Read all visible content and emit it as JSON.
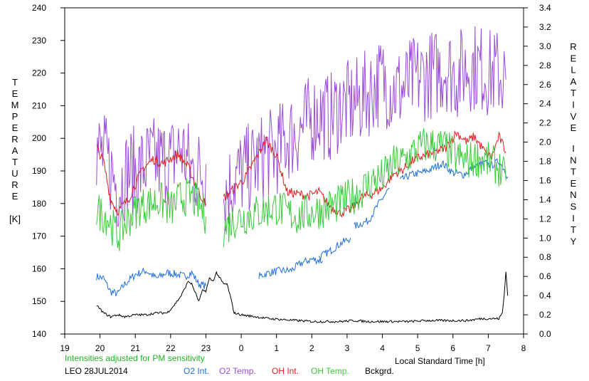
{
  "chart_data": {
    "type": "line",
    "title": "",
    "xlabel": "Local Standard Time [h]",
    "ylabel_left": "TEMPERATURE [K]",
    "ylabel_left_letters": [
      "T",
      "E",
      "M",
      "P",
      "E",
      "R",
      "A",
      "T",
      "U",
      "R",
      "E"
    ],
    "ylabel_left_unit": "[K]",
    "ylabel_right": "RELATIVE INTENSITY",
    "ylabel_right_word1": [
      "R",
      "E",
      "L",
      "A",
      "T",
      "I",
      "V",
      "E"
    ],
    "ylabel_right_word2": [
      "I",
      "N",
      "T",
      "E",
      "N",
      "S",
      "I",
      "T",
      "Y"
    ],
    "x_range": [
      19,
      32
    ],
    "x_ticks": [
      19,
      20,
      21,
      22,
      23,
      24,
      25,
      26,
      27,
      28,
      29,
      30,
      31,
      32
    ],
    "x_tick_labels": [
      "19",
      "20",
      "21",
      "22",
      "23",
      "0",
      "1",
      "2",
      "3",
      "4",
      "5",
      "6",
      "7",
      "8"
    ],
    "ylim_left": [
      140,
      240
    ],
    "y_left_ticks": [
      140,
      150,
      160,
      170,
      180,
      190,
      200,
      210,
      220,
      230,
      240
    ],
    "y_left_tick_labels": [
      "140",
      "150",
      "160",
      "170",
      "180",
      "190",
      "200",
      "210",
      "220",
      "230",
      "240"
    ],
    "ylim_right": [
      0.0,
      3.4
    ],
    "y_right_ticks": [
      0.0,
      0.2,
      0.4,
      0.6,
      0.8,
      1.0,
      1.2,
      1.4,
      1.6,
      1.8,
      2.0,
      2.2,
      2.4,
      2.6,
      2.8,
      3.0,
      3.2,
      3.4
    ],
    "y_right_tick_labels": [
      "0.0",
      "0.2",
      "0.4",
      "0.6",
      "0.8",
      "1.0",
      "1.2",
      "1.4",
      "1.6",
      "1.8",
      "2.0",
      "2.2",
      "2.4",
      "2.6",
      "2.8",
      "3.0",
      "3.2",
      "3.4"
    ],
    "grid": false,
    "note": "Intensities adjusted for PM sensitivity",
    "station": "LEO 28JUL2014",
    "series": [
      {
        "name": "O2 Int.",
        "axis": "right",
        "color": "#1e6fd9",
        "noise": 0.04,
        "segments": [
          [
            [
              19.9,
              0.6
            ],
            [
              20.1,
              0.58
            ],
            [
              20.3,
              0.44
            ],
            [
              20.5,
              0.42
            ],
            [
              20.7,
              0.52
            ],
            [
              21.0,
              0.62
            ],
            [
              21.3,
              0.66
            ],
            [
              21.6,
              0.58
            ],
            [
              21.9,
              0.64
            ],
            [
              22.2,
              0.62
            ],
            [
              22.4,
              0.6
            ],
            [
              22.6,
              0.64
            ],
            [
              22.8,
              0.52
            ],
            [
              23.0,
              0.5
            ]
          ],
          [
            [
              24.5,
              0.6
            ],
            [
              24.8,
              0.64
            ],
            [
              25.1,
              0.66
            ],
            [
              25.4,
              0.66
            ],
            [
              25.7,
              0.74
            ],
            [
              26.0,
              0.78
            ],
            [
              26.3,
              0.76
            ]
          ],
          [
            [
              26.2,
              0.8
            ],
            [
              26.5,
              0.86
            ],
            [
              26.8,
              0.94
            ],
            [
              27.1,
              1.0
            ]
          ],
          [
            [
              27.2,
              1.12
            ],
            [
              27.6,
              1.18
            ],
            [
              27.9,
              1.36
            ],
            [
              28.2,
              1.52
            ]
          ],
          [
            [
              28.5,
              1.6
            ],
            [
              28.8,
              1.66
            ],
            [
              29.1,
              1.68
            ],
            [
              29.4,
              1.72
            ],
            [
              29.7,
              1.78
            ],
            [
              30.0,
              1.68
            ],
            [
              30.3,
              1.66
            ],
            [
              30.6,
              1.74
            ],
            [
              30.9,
              1.78
            ],
            [
              31.1,
              1.76
            ],
            [
              31.3,
              1.8
            ],
            [
              31.45,
              1.72
            ],
            [
              31.55,
              1.64
            ]
          ]
        ]
      },
      {
        "name": "O2 Temp.",
        "axis": "left",
        "color": "#9b4dd6",
        "noise": 14,
        "segments": [
          [
            [
              19.9,
              197
            ],
            [
              20.2,
              193
            ],
            [
              20.5,
              185
            ],
            [
              20.8,
              190
            ],
            [
              21.1,
              190
            ],
            [
              21.4,
              193
            ],
            [
              21.7,
              193
            ],
            [
              22.0,
              193
            ],
            [
              22.3,
              197
            ],
            [
              22.6,
              190
            ],
            [
              22.9,
              190
            ],
            [
              23.0,
              192
            ]
          ],
          [
            [
              23.5,
              182
            ],
            [
              23.8,
              188
            ],
            [
              24.1,
              190
            ],
            [
              24.4,
              192
            ],
            [
              24.7,
              195
            ],
            [
              25.0,
              196
            ],
            [
              25.3,
              200
            ],
            [
              25.6,
              202
            ],
            [
              25.9,
              205
            ],
            [
              26.2,
              208
            ],
            [
              26.5,
              206
            ],
            [
              26.8,
              210
            ],
            [
              27.1,
              210
            ],
            [
              27.4,
              212
            ],
            [
              27.7,
              215
            ],
            [
              28.0,
              218
            ],
            [
              28.3,
              215
            ],
            [
              28.6,
              215
            ],
            [
              28.9,
              218
            ],
            [
              29.2,
              219
            ],
            [
              29.5,
              220
            ],
            [
              29.8,
              222
            ],
            [
              30.1,
              219
            ],
            [
              30.4,
              222
            ],
            [
              30.7,
              222
            ],
            [
              31.0,
              220
            ],
            [
              31.3,
              220
            ],
            [
              31.5,
              218
            ]
          ]
        ]
      },
      {
        "name": "OH Int.",
        "axis": "right",
        "color": "#dd1f1f",
        "noise": 0.05,
        "segments": [
          [
            [
              19.9,
              1.95
            ],
            [
              20.1,
              1.8
            ],
            [
              20.3,
              1.4
            ],
            [
              20.5,
              1.28
            ],
            [
              20.8,
              1.4
            ],
            [
              21.2,
              1.72
            ],
            [
              21.5,
              1.82
            ],
            [
              21.8,
              1.78
            ],
            [
              22.2,
              1.88
            ],
            [
              22.5,
              1.74
            ],
            [
              22.8,
              1.48
            ],
            [
              23.0,
              1.34
            ]
          ],
          [
            [
              23.5,
              1.42
            ],
            [
              23.8,
              1.52
            ],
            [
              24.1,
              1.62
            ],
            [
              24.4,
              1.82
            ],
            [
              24.7,
              2.02
            ],
            [
              25.0,
              1.86
            ],
            [
              25.3,
              1.48
            ],
            [
              25.6,
              1.46
            ],
            [
              25.9,
              1.44
            ],
            [
              26.2,
              1.48
            ],
            [
              26.5,
              1.34
            ],
            [
              26.8,
              1.26
            ],
            [
              27.1,
              1.3
            ],
            [
              27.4,
              1.42
            ],
            [
              27.7,
              1.46
            ],
            [
              28.0,
              1.52
            ],
            [
              28.3,
              1.66
            ],
            [
              28.6,
              1.72
            ],
            [
              28.9,
              1.82
            ],
            [
              29.2,
              1.86
            ],
            [
              29.5,
              1.9
            ],
            [
              29.8,
              1.94
            ],
            [
              30.1,
              2.1
            ],
            [
              30.4,
              2.0
            ],
            [
              30.6,
              2.06
            ],
            [
              30.9,
              1.9
            ],
            [
              31.1,
              1.84
            ],
            [
              31.3,
              2.06
            ],
            [
              31.5,
              1.9
            ]
          ]
        ]
      },
      {
        "name": "OH Temp.",
        "axis": "left",
        "color": "#3cc83c",
        "noise": 6,
        "segments": [
          [
            [
              19.9,
              178
            ],
            [
              20.2,
              176
            ],
            [
              20.5,
              170
            ],
            [
              20.8,
              175
            ],
            [
              21.1,
              179
            ],
            [
              21.4,
              180
            ],
            [
              21.7,
              181
            ],
            [
              22.0,
              178
            ],
            [
              22.3,
              182
            ],
            [
              22.6,
              182
            ],
            [
              22.9,
              178
            ],
            [
              23.0,
              176
            ]
          ],
          [
            [
              23.5,
              172
            ],
            [
              23.8,
              175
            ],
            [
              24.1,
              176
            ],
            [
              24.4,
              177
            ],
            [
              24.7,
              178
            ],
            [
              25.0,
              179
            ],
            [
              25.3,
              177
            ],
            [
              25.6,
              176
            ],
            [
              25.9,
              177
            ],
            [
              26.2,
              178
            ],
            [
              26.5,
              179
            ],
            [
              26.8,
              180
            ],
            [
              27.1,
              182
            ],
            [
              27.4,
              184
            ],
            [
              27.7,
              187
            ],
            [
              28.0,
              188
            ],
            [
              28.3,
              192
            ],
            [
              28.6,
              193
            ],
            [
              28.9,
              196
            ],
            [
              29.2,
              198
            ],
            [
              29.5,
              198
            ],
            [
              29.8,
              197
            ],
            [
              30.1,
              194
            ],
            [
              30.4,
              193
            ],
            [
              30.7,
              194
            ],
            [
              31.0,
              193
            ],
            [
              31.3,
              191
            ],
            [
              31.5,
              187
            ]
          ]
        ]
      },
      {
        "name": "Bckgrd.",
        "axis": "right",
        "color": "#000000",
        "noise": 0.012,
        "segments": [
          [
            [
              19.9,
              0.3
            ],
            [
              20.1,
              0.22
            ],
            [
              20.3,
              0.18
            ],
            [
              20.5,
              0.2
            ],
            [
              20.7,
              0.18
            ],
            [
              21.0,
              0.2
            ],
            [
              21.3,
              0.2
            ],
            [
              21.6,
              0.22
            ],
            [
              21.9,
              0.22
            ],
            [
              22.1,
              0.3
            ],
            [
              22.3,
              0.4
            ],
            [
              22.5,
              0.55
            ],
            [
              22.6,
              0.52
            ],
            [
              22.8,
              0.34
            ],
            [
              22.9,
              0.45
            ],
            [
              23.0,
              0.45
            ],
            [
              23.1,
              0.58
            ],
            [
              23.2,
              0.55
            ],
            [
              23.3,
              0.64
            ],
            [
              23.4,
              0.58
            ],
            [
              23.5,
              0.52
            ],
            [
              23.6,
              0.52
            ],
            [
              23.7,
              0.38
            ],
            [
              23.8,
              0.22
            ],
            [
              24.0,
              0.2
            ],
            [
              24.4,
              0.18
            ],
            [
              24.8,
              0.16
            ],
            [
              25.2,
              0.15
            ],
            [
              25.6,
              0.14
            ],
            [
              26.0,
              0.13
            ],
            [
              26.4,
              0.13
            ],
            [
              26.8,
              0.13
            ],
            [
              27.2,
              0.14
            ],
            [
              27.6,
              0.13
            ],
            [
              28.0,
              0.13
            ],
            [
              28.4,
              0.13
            ],
            [
              28.8,
              0.13
            ],
            [
              29.2,
              0.14
            ],
            [
              29.6,
              0.14
            ],
            [
              30.0,
              0.14
            ],
            [
              30.4,
              0.14
            ],
            [
              30.8,
              0.16
            ],
            [
              31.1,
              0.16
            ],
            [
              31.3,
              0.16
            ],
            [
              31.4,
              0.22
            ],
            [
              31.45,
              0.4
            ],
            [
              31.5,
              0.66
            ],
            [
              31.55,
              0.4
            ]
          ]
        ]
      }
    ]
  }
}
